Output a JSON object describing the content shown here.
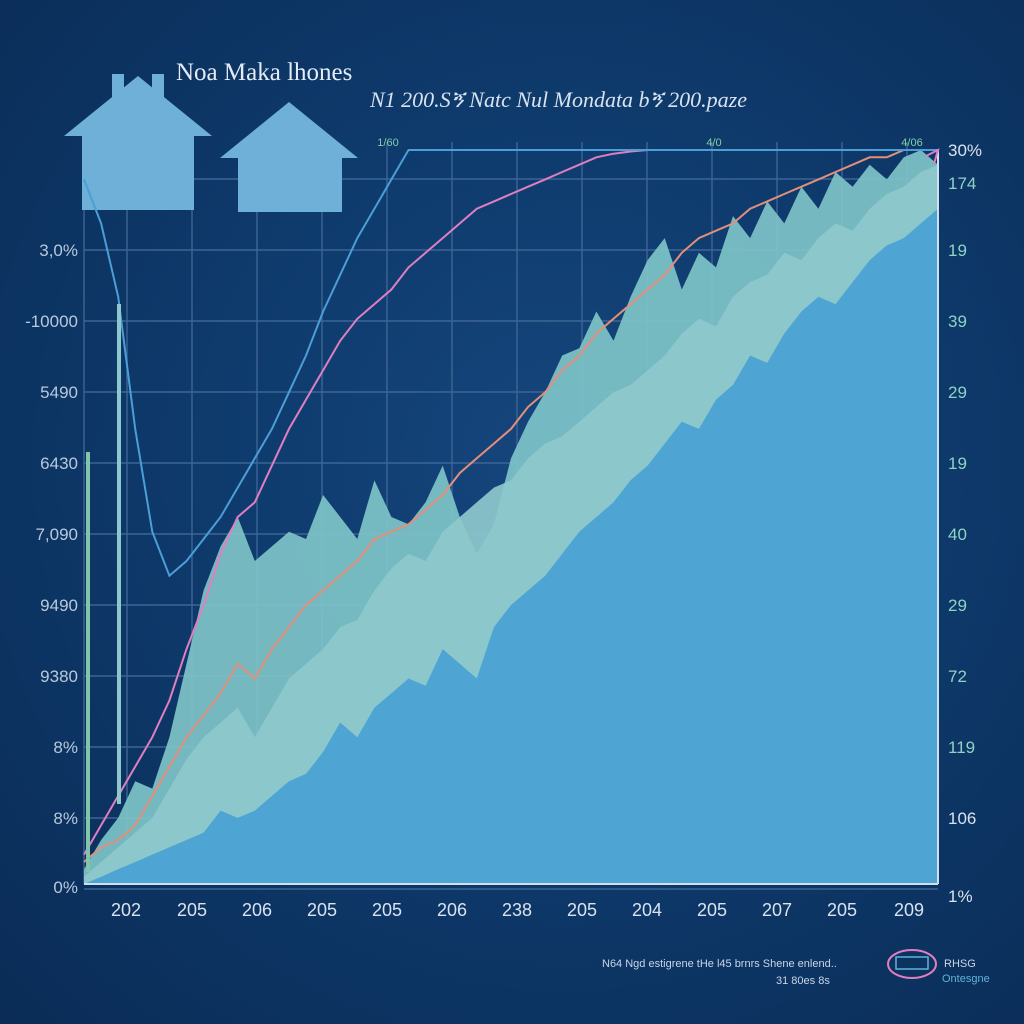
{
  "chart_data": {
    "type": "area",
    "title": "Noa Maka lhones",
    "subtitle": "N1 200.Sኝ Natc Nul Mondata bኝ 200.paze",
    "x_tick_labels": [
      "202",
      "205",
      "206",
      "205",
      "205",
      "206",
      "238",
      "205",
      "204",
      "205",
      "207",
      "205",
      "209"
    ],
    "y_left_tick_labels": [
      "3,0%",
      "-10000",
      "5490",
      "6430",
      "7,090",
      "9490",
      "9380",
      "8%",
      "8%",
      "0%"
    ],
    "y_right_tick_labels": [
      "30%",
      "174",
      "19",
      "39",
      "29",
      "19",
      "40",
      "29",
      "72",
      "119",
      "106",
      "1%"
    ],
    "top_tick_labels": [
      "1/60",
      "4/0",
      "4/06"
    ],
    "x": [
      0,
      0.02,
      0.04,
      0.06,
      0.08,
      0.1,
      0.12,
      0.14,
      0.16,
      0.18,
      0.2,
      0.22,
      0.24,
      0.26,
      0.28,
      0.3,
      0.32,
      0.34,
      0.36,
      0.38,
      0.4,
      0.42,
      0.44,
      0.46,
      0.48,
      0.5,
      0.52,
      0.54,
      0.56,
      0.58,
      0.6,
      0.62,
      0.64,
      0.66,
      0.68,
      0.7,
      0.72,
      0.74,
      0.76,
      0.78,
      0.8,
      0.82,
      0.84,
      0.86,
      0.88,
      0.9,
      0.92,
      0.94,
      0.96,
      0.98,
      1.0
    ],
    "series": [
      {
        "color": "#7ec3c8",
        "values": [
          0.02,
          0.06,
          0.09,
          0.14,
          0.13,
          0.2,
          0.3,
          0.4,
          0.46,
          0.5,
          0.44,
          0.46,
          0.48,
          0.47,
          0.53,
          0.5,
          0.47,
          0.55,
          0.5,
          0.49,
          0.52,
          0.57,
          0.5,
          0.45,
          0.49,
          0.58,
          0.63,
          0.67,
          0.72,
          0.73,
          0.78,
          0.74,
          0.8,
          0.85,
          0.88,
          0.81,
          0.86,
          0.84,
          0.91,
          0.88,
          0.93,
          0.9,
          0.95,
          0.92,
          0.97,
          0.95,
          0.98,
          0.96,
          0.99,
          1.0,
          0.98
        ]
      },
      {
        "color": "#8ec8cc",
        "values": [
          0.01,
          0.03,
          0.05,
          0.07,
          0.09,
          0.13,
          0.17,
          0.2,
          0.22,
          0.24,
          0.2,
          0.24,
          0.28,
          0.3,
          0.32,
          0.35,
          0.36,
          0.4,
          0.43,
          0.45,
          0.44,
          0.48,
          0.5,
          0.52,
          0.54,
          0.55,
          0.58,
          0.6,
          0.61,
          0.63,
          0.65,
          0.67,
          0.68,
          0.7,
          0.72,
          0.75,
          0.77,
          0.76,
          0.8,
          0.82,
          0.83,
          0.86,
          0.85,
          0.88,
          0.9,
          0.89,
          0.92,
          0.94,
          0.95,
          0.97,
          0.98
        ]
      },
      {
        "color": "#4ba3d3",
        "values": [
          0.0,
          0.01,
          0.02,
          0.03,
          0.04,
          0.05,
          0.06,
          0.07,
          0.1,
          0.09,
          0.1,
          0.12,
          0.14,
          0.15,
          0.18,
          0.22,
          0.2,
          0.24,
          0.26,
          0.28,
          0.27,
          0.32,
          0.3,
          0.28,
          0.35,
          0.38,
          0.4,
          0.42,
          0.45,
          0.48,
          0.5,
          0.52,
          0.55,
          0.57,
          0.6,
          0.63,
          0.62,
          0.66,
          0.68,
          0.72,
          0.71,
          0.75,
          0.78,
          0.8,
          0.79,
          0.82,
          0.85,
          0.87,
          0.88,
          0.9,
          0.92
        ]
      }
    ],
    "lines": [
      {
        "color": "#e38f7a",
        "values": [
          0.03,
          0.05,
          0.06,
          0.08,
          0.12,
          0.16,
          0.2,
          0.23,
          0.26,
          0.3,
          0.28,
          0.32,
          0.35,
          0.38,
          0.4,
          0.42,
          0.44,
          0.47,
          0.48,
          0.49,
          0.51,
          0.53,
          0.56,
          0.58,
          0.6,
          0.62,
          0.65,
          0.67,
          0.7,
          0.72,
          0.75,
          0.77,
          0.79,
          0.81,
          0.83,
          0.86,
          0.88,
          0.89,
          0.9,
          0.92,
          0.93,
          0.94,
          0.95,
          0.96,
          0.97,
          0.98,
          0.99,
          0.99,
          1.0,
          1.0,
          1.0
        ]
      },
      {
        "color": "#e07fc0",
        "values": [
          0.04,
          0.08,
          0.12,
          0.16,
          0.2,
          0.25,
          0.32,
          0.38,
          0.45,
          0.5,
          0.52,
          0.57,
          0.62,
          0.66,
          0.7,
          0.74,
          0.77,
          0.79,
          0.81,
          0.84,
          0.86,
          0.88,
          0.9,
          0.92,
          0.93,
          0.94,
          0.95,
          0.96,
          0.97,
          0.98,
          0.99,
          0.995,
          0.998,
          1.0,
          1.0,
          1.0,
          1.0,
          1.0,
          1.0,
          1.0,
          1.0,
          1.0,
          1.0,
          1.0,
          1.0,
          1.0,
          1.0,
          1.0,
          1.0,
          1.0,
          1.0
        ]
      },
      {
        "color": "#4b9fd6",
        "values": [
          0.96,
          0.9,
          0.8,
          0.62,
          0.48,
          0.42,
          0.44,
          0.47,
          0.5,
          0.54,
          0.58,
          0.62,
          0.67,
          0.72,
          0.78,
          0.83,
          0.88,
          0.92,
          0.96,
          1.0,
          1.0,
          1.0,
          1.0,
          1.0,
          1.0,
          1.0,
          1.0,
          1.0,
          1.0,
          1.0,
          1.0,
          1.0,
          1.0,
          1.0,
          1.0,
          1.0,
          1.0,
          1.0,
          1.0,
          1.0,
          1.0,
          1.0,
          1.0,
          1.0,
          1.0,
          1.0,
          1.0,
          1.0,
          1.0,
          1.0,
          1.0
        ]
      }
    ],
    "grid": true,
    "legend": "none"
  },
  "footnotes": {
    "line1": "N64 Ngd estigrene tHe l45   brnrs Shene enlend..",
    "line2": "31 80es 8s",
    "logo_text": "RHSG",
    "logo_sub": "Ontesgne"
  },
  "colors": {
    "background": "#0e3a6c",
    "grid": "#3d6596",
    "house": "#6fb0d8",
    "axis": "#cfe0ee"
  }
}
